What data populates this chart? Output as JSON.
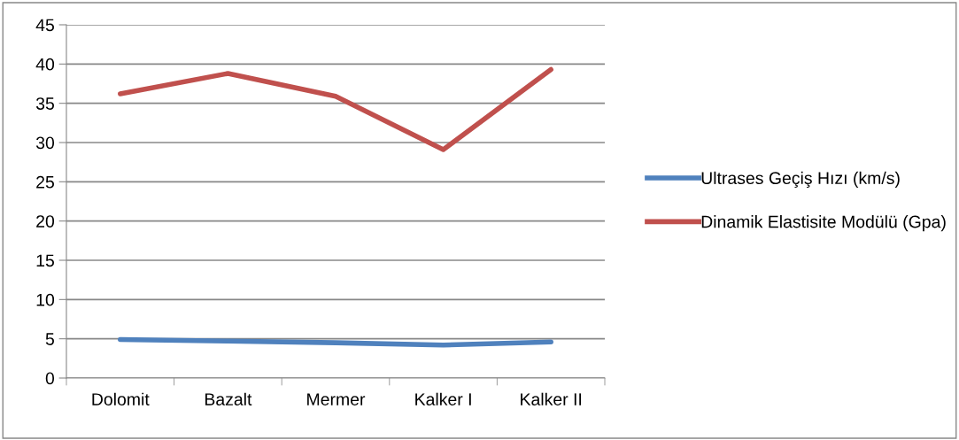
{
  "chart_data": {
    "type": "line",
    "categories": [
      "Dolomit",
      "Bazalt",
      "Mermer",
      "Kalker I",
      "Kalker II"
    ],
    "series": [
      {
        "name": "Ultrases Geçiş Hızı (km/s)",
        "color": "#4f81bd",
        "values": [
          4.9,
          4.7,
          4.5,
          4.2,
          4.6
        ]
      },
      {
        "name": "Dinamik Elastisite Modülü (Gpa)",
        "color": "#c0504d",
        "values": [
          36.2,
          38.8,
          35.9,
          29.1,
          39.3
        ]
      }
    ],
    "ylim": [
      0,
      45
    ],
    "yticks": [
      0,
      5,
      10,
      15,
      20,
      25,
      30,
      35,
      40,
      45
    ],
    "grid": "y",
    "legend": "right",
    "marker": "none",
    "line_style": "solid"
  }
}
